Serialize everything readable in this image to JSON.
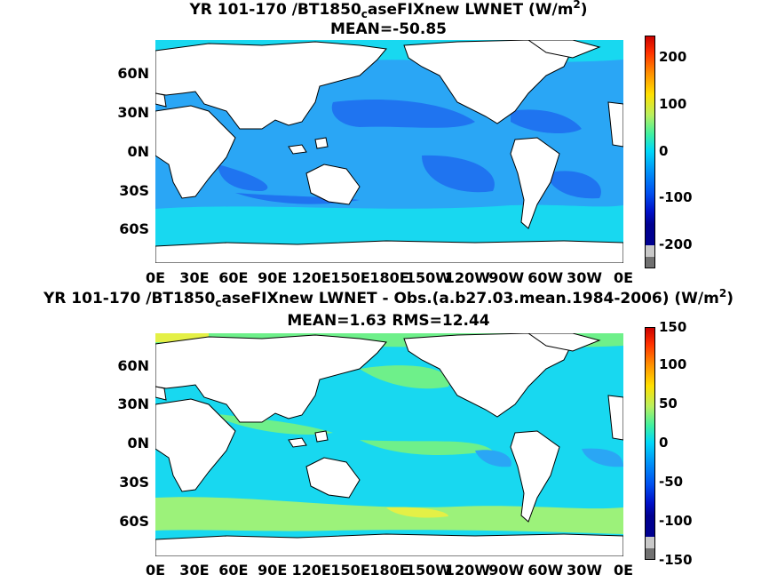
{
  "panels": [
    {
      "title_pre": "YR 101-170 /BT1850",
      "title_sub": "c",
      "title_post": "aseFIXnew  LWNET (W/m",
      "title_sup": "2",
      "title_end": ")",
      "stats": "MEAN=-50.85",
      "colorbar_ticks": [
        "200",
        "100",
        "0",
        "-100",
        "-200"
      ]
    },
    {
      "title_pre": "YR 101-170 /BT1850",
      "title_sub": "c",
      "title_post": "aseFIXnew LWNET - Obs.(a.b27.03.mean.1984-2006) (W/m",
      "title_sup": "2",
      "title_end": ")",
      "stats": "MEAN=1.63 RMS=12.44",
      "colorbar_ticks": [
        "150",
        "100",
        "50",
        "0",
        "-50",
        "-100",
        "-150"
      ]
    }
  ],
  "lat_labels": [
    "60N",
    "30N",
    "0N",
    "30S",
    "60S"
  ],
  "lon_labels": [
    "0E",
    "30E",
    "60E",
    "90E",
    "120E",
    "150E",
    "180E",
    "150W",
    "120W",
    "90W",
    "60W",
    "30W",
    "0E"
  ],
  "colors": {
    "land": "#ffffff",
    "ocean_dark": "#1f74f0",
    "ocean_mid": "#2aa6f5",
    "ocean_light": "#18d8f0",
    "green": "#6ef08a",
    "lightgreen": "#9cf27a",
    "yellow": "#e4f046"
  }
}
